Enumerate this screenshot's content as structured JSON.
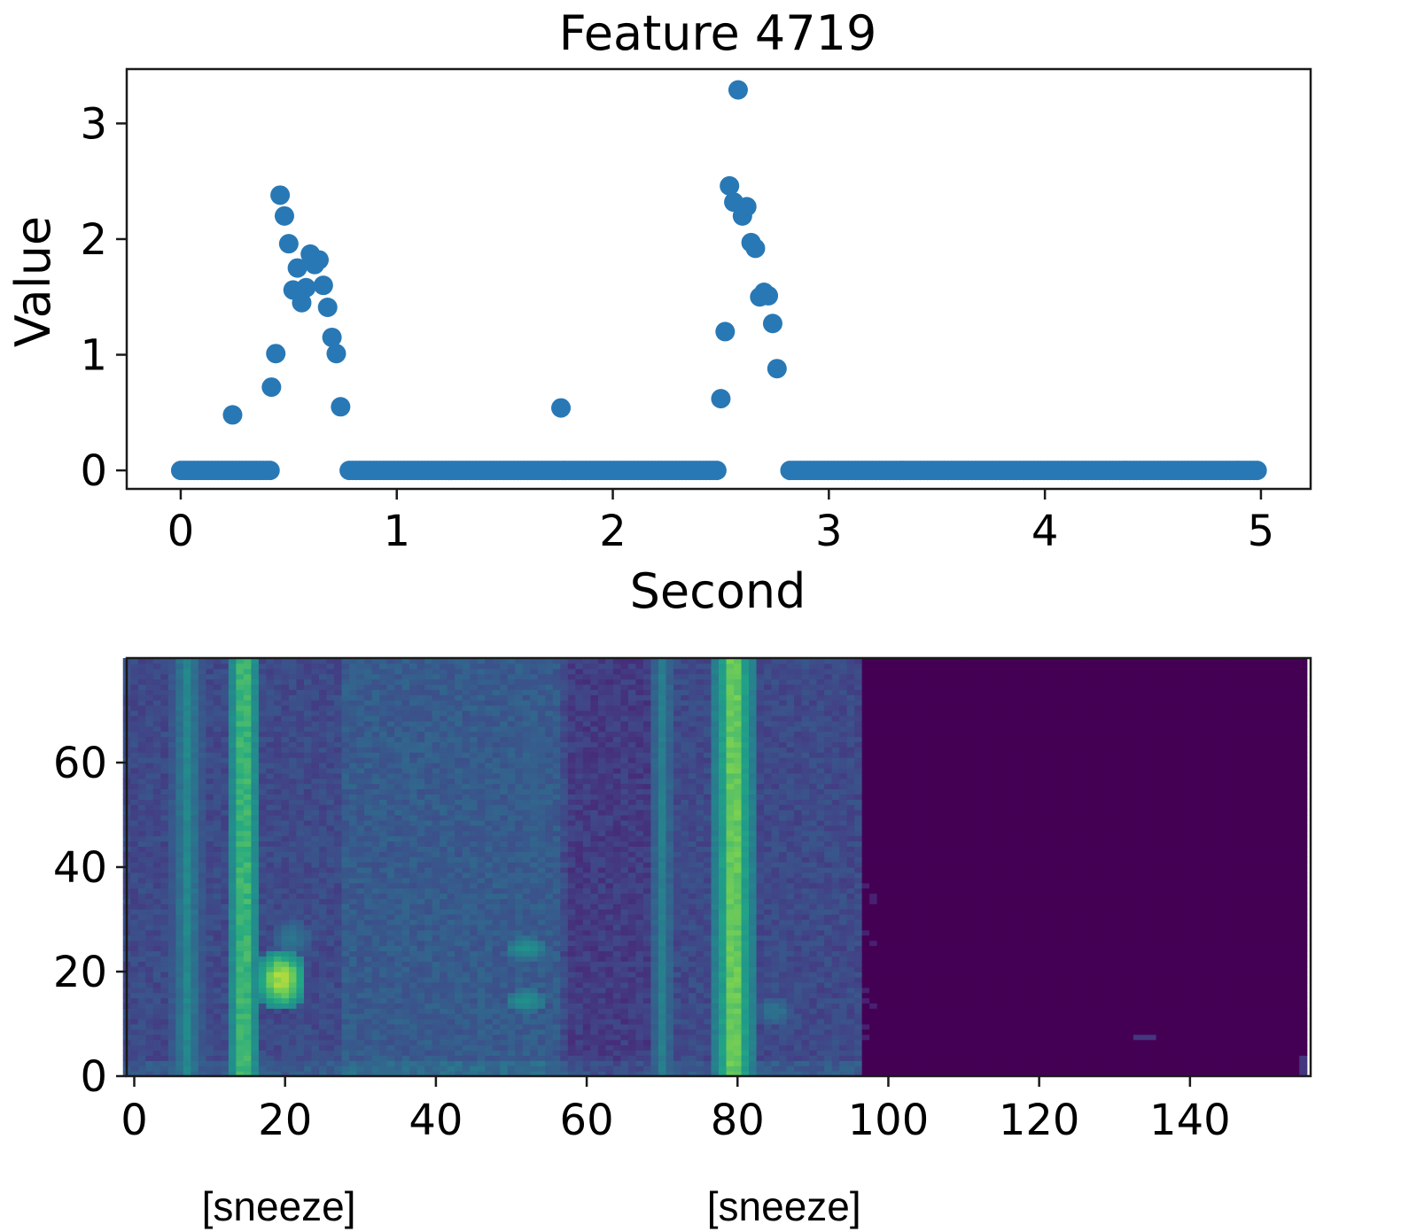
{
  "chart_data": [
    {
      "type": "scatter",
      "title": "Feature 4719",
      "xlabel": "Second",
      "ylabel": "Value",
      "xlim": [
        -0.25,
        5.23
      ],
      "ylim": [
        -0.16,
        3.47
      ],
      "xticks": [
        0,
        1,
        2,
        3,
        4,
        5
      ],
      "yticks": [
        0,
        1,
        2,
        3
      ],
      "color": "#2878b5",
      "grid": false,
      "zero_runs": [
        {
          "from": 0.0,
          "to": 0.42,
          "step": 0.0159
        },
        {
          "from": 0.78,
          "to": 2.49,
          "step": 0.0159
        },
        {
          "from": 2.82,
          "to": 4.99,
          "step": 0.0159
        }
      ],
      "points": [
        {
          "x": 0.24,
          "y": 0.48
        },
        {
          "x": 0.42,
          "y": 0.72
        },
        {
          "x": 0.44,
          "y": 1.01
        },
        {
          "x": 0.46,
          "y": 2.38
        },
        {
          "x": 0.48,
          "y": 2.2
        },
        {
          "x": 0.5,
          "y": 1.96
        },
        {
          "x": 0.52,
          "y": 1.56
        },
        {
          "x": 0.54,
          "y": 1.75
        },
        {
          "x": 0.56,
          "y": 1.45
        },
        {
          "x": 0.58,
          "y": 1.58
        },
        {
          "x": 0.6,
          "y": 1.87
        },
        {
          "x": 0.62,
          "y": 1.78
        },
        {
          "x": 0.64,
          "y": 1.82
        },
        {
          "x": 0.66,
          "y": 1.6
        },
        {
          "x": 0.68,
          "y": 1.41
        },
        {
          "x": 0.7,
          "y": 1.15
        },
        {
          "x": 0.72,
          "y": 1.01
        },
        {
          "x": 0.74,
          "y": 0.55
        },
        {
          "x": 1.76,
          "y": 0.54
        },
        {
          "x": 2.5,
          "y": 0.62
        },
        {
          "x": 2.52,
          "y": 1.2
        },
        {
          "x": 2.54,
          "y": 2.46
        },
        {
          "x": 2.56,
          "y": 2.32
        },
        {
          "x": 2.58,
          "y": 3.29
        },
        {
          "x": 2.6,
          "y": 2.2
        },
        {
          "x": 2.62,
          "y": 2.28
        },
        {
          "x": 2.64,
          "y": 1.97
        },
        {
          "x": 2.66,
          "y": 1.92
        },
        {
          "x": 2.68,
          "y": 1.5
        },
        {
          "x": 2.7,
          "y": 1.54
        },
        {
          "x": 2.72,
          "y": 1.51
        },
        {
          "x": 2.74,
          "y": 1.27
        },
        {
          "x": 2.76,
          "y": 0.88
        }
      ]
    },
    {
      "type": "heatmap",
      "xlim": [
        -1,
        156
      ],
      "ylim": [
        0,
        80
      ],
      "xticks": [
        0,
        20,
        40,
        60,
        80,
        100,
        120,
        140
      ],
      "yticks": [
        0,
        20,
        40,
        60
      ],
      "colormap": "viridis",
      "silent_from_frame": 97,
      "vertical_bands": [
        {
          "x": 7,
          "width": 1.6,
          "intensity": 0.55,
          "y_to": 80
        },
        {
          "x": 14.5,
          "width": 1.6,
          "intensity": 0.85,
          "y_to": 80
        },
        {
          "x": 28,
          "width": 0.8,
          "intensity": 0.3,
          "y_to": 40
        },
        {
          "x": 70,
          "width": 1.3,
          "intensity": 0.5,
          "y_to": 80
        },
        {
          "x": 79.5,
          "width": 2.0,
          "intensity": 0.9,
          "y_to": 80
        }
      ],
      "blobs": [
        {
          "x": 19.5,
          "y": 18,
          "rx": 3.5,
          "ry": 6,
          "intensity": 0.9
        },
        {
          "x": 21,
          "y": 26,
          "rx": 3,
          "ry": 4,
          "intensity": 0.45
        },
        {
          "x": 52,
          "y": 24,
          "rx": 3,
          "ry": 2.5,
          "intensity": 0.6
        },
        {
          "x": 52,
          "y": 14,
          "rx": 3,
          "ry": 2.5,
          "intensity": 0.6
        },
        {
          "x": 53,
          "y": 55,
          "rx": 3,
          "ry": 25,
          "intensity": 0.35
        },
        {
          "x": 36,
          "y": 60,
          "rx": 15,
          "ry": 22,
          "intensity": 0.2
        },
        {
          "x": 85,
          "y": 12,
          "rx": 2.5,
          "ry": 3,
          "intensity": 0.45
        },
        {
          "x": 134,
          "y": 7,
          "rx": 2,
          "ry": 1,
          "intensity": 0.2
        }
      ]
    }
  ],
  "annotations": [
    {
      "text": "[sneeze]",
      "frame": 8
    },
    {
      "text": "[sneeze]",
      "frame": 75
    }
  ]
}
